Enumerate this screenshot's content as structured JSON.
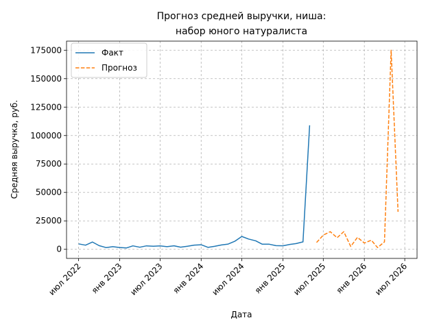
{
  "chart_data": {
    "type": "line",
    "title_lines": [
      "Прогноз средней выручки, ниша:",
      "набор юного натуралиста"
    ],
    "xlabel": "Дата",
    "ylabel": "Средняя выручка, руб.",
    "x_ticks": [
      {
        "label": "июл 2022",
        "date": "2022-07-01"
      },
      {
        "label": "янв 2023",
        "date": "2023-01-01"
      },
      {
        "label": "июл 2023",
        "date": "2023-07-01"
      },
      {
        "label": "янв 2024",
        "date": "2024-01-01"
      },
      {
        "label": "июл 2024",
        "date": "2024-07-01"
      },
      {
        "label": "янв 2025",
        "date": "2025-01-01"
      },
      {
        "label": "июл 2025",
        "date": "2025-07-01"
      },
      {
        "label": "янв 2026",
        "date": "2026-01-01"
      },
      {
        "label": "июл 2026",
        "date": "2026-07-01"
      }
    ],
    "y_ticks": [
      {
        "label": "0",
        "value": 0
      },
      {
        "label": "25000",
        "value": 25000
      },
      {
        "label": "50000",
        "value": 50000
      },
      {
        "label": "75000",
        "value": 75000
      },
      {
        "label": "100000",
        "value": 100000
      },
      {
        "label": "125000",
        "value": 125000
      },
      {
        "label": "150000",
        "value": 150000
      },
      {
        "label": "175000",
        "value": 175000
      }
    ],
    "xlim": [
      "2022-05-08",
      "2026-08-25"
    ],
    "ylim": [
      -8000,
      183000
    ],
    "grid": true,
    "legend_position": "top-left",
    "series": [
      {
        "name": "Факт",
        "color": "#1f77b4",
        "style": "solid",
        "x": [
          "2022-07-01",
          "2022-08-01",
          "2022-09-01",
          "2022-10-01",
          "2022-11-01",
          "2022-12-01",
          "2023-01-01",
          "2023-02-01",
          "2023-03-01",
          "2023-04-01",
          "2023-05-01",
          "2023-06-01",
          "2023-07-01",
          "2023-08-01",
          "2023-09-01",
          "2023-10-01",
          "2023-11-01",
          "2023-12-01",
          "2024-01-01",
          "2024-02-01",
          "2024-03-01",
          "2024-04-01",
          "2024-05-01",
          "2024-06-01",
          "2024-07-01",
          "2024-08-01",
          "2024-09-01",
          "2024-10-01",
          "2024-11-01",
          "2024-12-01",
          "2025-01-01",
          "2025-02-01",
          "2025-03-01",
          "2025-04-01",
          "2025-05-01"
        ],
        "values": [
          4800,
          3600,
          6400,
          3200,
          1500,
          2300,
          1600,
          1200,
          3000,
          1800,
          3000,
          2700,
          3000,
          2300,
          3100,
          1900,
          2700,
          3700,
          4000,
          1700,
          2600,
          3800,
          4600,
          7200,
          11300,
          9000,
          7500,
          4500,
          4500,
          3200,
          3100,
          4300,
          5000,
          6500,
          109000
        ]
      },
      {
        "name": "Прогноз",
        "color": "#ff7f0e",
        "style": "dashed",
        "x": [
          "2025-06-01",
          "2025-07-01",
          "2025-08-01",
          "2025-09-01",
          "2025-10-01",
          "2025-11-01",
          "2025-12-01",
          "2026-01-01",
          "2026-02-01",
          "2026-03-01",
          "2026-04-01",
          "2026-05-01",
          "2026-06-01"
        ],
        "values": [
          6000,
          12500,
          15500,
          10200,
          15500,
          2500,
          10500,
          5500,
          8000,
          1500,
          6500,
          175000,
          33000
        ]
      }
    ]
  }
}
